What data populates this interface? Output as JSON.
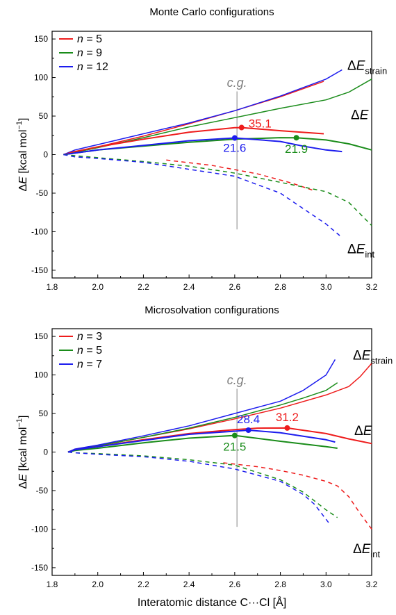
{
  "chart_data": [
    {
      "type": "line",
      "title": "Monte Carlo configurations",
      "ylabel_prefix": "Δ",
      "ylabel_var": "E",
      "ylabel_units": "[kcal mol",
      "ylabel_sup": "−1",
      "ylabel_close": "]",
      "xlim": [
        1.8,
        3.2
      ],
      "ylim": [
        -160,
        160
      ],
      "xticks": [
        "1.8",
        "2.0",
        "2.2",
        "2.4",
        "2.6",
        "2.8",
        "3.0",
        "3.2"
      ],
      "yticks": [
        "-150",
        "-100",
        "-50",
        "0",
        "50",
        "100",
        "150"
      ],
      "legend": [
        {
          "prefix": "n",
          "text": " = 5",
          "color": "#ee1c1c"
        },
        {
          "prefix": "n",
          "text": " = 9",
          "color": "#1a8c1a"
        },
        {
          "prefix": "n",
          "text": " = 12",
          "color": "#1c1cee"
        }
      ],
      "cg": {
        "label": "c.g.",
        "x": 2.61
      },
      "curve_labels": [
        {
          "delta": "Δ",
          "var": "E",
          "sub": "strain"
        },
        {
          "delta": "Δ",
          "var": "E",
          "sub": ""
        },
        {
          "delta": "Δ",
          "var": "E",
          "sub": "int"
        }
      ],
      "annotations": [
        {
          "text": "35.1",
          "x": 2.63,
          "y": 35.1,
          "color": "#ee1c1c"
        },
        {
          "text": "21.6",
          "x": 2.6,
          "y": 21.6,
          "color": "#1c1cee"
        },
        {
          "text": "21.9",
          "x": 2.87,
          "y": 21.9,
          "color": "#1a8c1a"
        }
      ],
      "series": [
        {
          "name": "n = 5",
          "kind": "strain",
          "color": "#ee1c1c",
          "x": [
            1.85,
            1.9,
            2.0,
            2.2,
            2.4,
            2.6,
            2.8,
            2.99
          ],
          "y": [
            0,
            4,
            10,
            24,
            40,
            57,
            75,
            95
          ]
        },
        {
          "name": "n = 9",
          "kind": "strain",
          "color": "#1a8c1a",
          "x": [
            1.85,
            1.9,
            2.0,
            2.2,
            2.4,
            2.6,
            2.8,
            3.0,
            3.1,
            3.2
          ],
          "y": [
            0,
            3,
            9,
            22,
            36,
            48,
            60,
            71,
            81,
            98
          ]
        },
        {
          "name": "n = 12",
          "kind": "strain",
          "color": "#1c1cee",
          "x": [
            1.85,
            1.9,
            2.0,
            2.2,
            2.4,
            2.6,
            2.8,
            3.0,
            3.07
          ],
          "y": [
            0,
            6,
            13,
            27,
            41,
            57,
            76,
            98,
            110
          ]
        },
        {
          "name": "n = 5",
          "kind": "total",
          "color": "#ee1c1c",
          "x": [
            1.85,
            1.9,
            2.0,
            2.2,
            2.4,
            2.6,
            2.63,
            2.8,
            2.99
          ],
          "y": [
            0,
            4,
            10,
            20,
            29,
            35,
            35.1,
            31,
            27
          ]
        },
        {
          "name": "n = 9",
          "kind": "total",
          "color": "#1a8c1a",
          "x": [
            1.85,
            1.9,
            2.0,
            2.2,
            2.4,
            2.6,
            2.8,
            2.87,
            3.0,
            3.1,
            3.2
          ],
          "y": [
            0,
            2,
            6,
            11,
            16,
            20,
            22,
            21.9,
            19,
            14,
            6
          ]
        },
        {
          "name": "n = 12",
          "kind": "total",
          "color": "#1c1cee",
          "x": [
            1.85,
            1.9,
            2.0,
            2.2,
            2.4,
            2.6,
            2.8,
            2.9,
            3.0,
            3.07
          ],
          "y": [
            0,
            2,
            6,
            12,
            18,
            21.6,
            17,
            11,
            6,
            4
          ]
        },
        {
          "name": "n = 5",
          "kind": "int",
          "color": "#ee1c1c",
          "dashed": true,
          "x": [
            2.3,
            2.5,
            2.7,
            2.85,
            2.95
          ],
          "y": [
            -7,
            -14,
            -25,
            -37,
            -47
          ]
        },
        {
          "name": "n = 9",
          "kind": "int",
          "color": "#1a8c1a",
          "dashed": true,
          "x": [
            1.85,
            2.0,
            2.2,
            2.4,
            2.6,
            2.8,
            3.0,
            3.1,
            3.2
          ],
          "y": [
            0,
            -4,
            -9,
            -15,
            -24,
            -36,
            -48,
            -62,
            -92
          ]
        },
        {
          "name": "n = 12",
          "kind": "int",
          "color": "#1c1cee",
          "dashed": true,
          "x": [
            1.85,
            1.9,
            2.0,
            2.2,
            2.4,
            2.6,
            2.8,
            2.9,
            3.0,
            3.06
          ],
          "y": [
            0,
            -3,
            -5,
            -10,
            -19,
            -28,
            -50,
            -70,
            -90,
            -105
          ]
        }
      ]
    },
    {
      "type": "line",
      "title": "Microsolvation configurations",
      "ylabel_prefix": "Δ",
      "ylabel_var": "E",
      "ylabel_units": "[kcal mol",
      "ylabel_sup": "−1",
      "ylabel_close": "]",
      "xlabel": "Interatomic distance C···Cl [Å]",
      "xlim": [
        1.8,
        3.2
      ],
      "ylim": [
        -160,
        160
      ],
      "xticks": [
        "1.8",
        "2.0",
        "2.2",
        "2.4",
        "2.6",
        "2.8",
        "3.0",
        "3.2"
      ],
      "yticks": [
        "-150",
        "-100",
        "-50",
        "0",
        "50",
        "100",
        "150"
      ],
      "legend": [
        {
          "prefix": "n",
          "text": " = 3",
          "color": "#ee1c1c"
        },
        {
          "prefix": "n",
          "text": " = 5",
          "color": "#1a8c1a"
        },
        {
          "prefix": "n",
          "text": " = 7",
          "color": "#1c1cee"
        }
      ],
      "cg": {
        "label": "c.g.",
        "x": 2.61
      },
      "curve_labels": [
        {
          "delta": "Δ",
          "var": "E",
          "sub": "strain"
        },
        {
          "delta": "Δ",
          "var": "E",
          "sub": ""
        },
        {
          "delta": "Δ",
          "var": "E",
          "sub": "int"
        }
      ],
      "annotations": [
        {
          "text": "28.4",
          "x": 2.66,
          "y": 28.4,
          "color": "#1c1cee"
        },
        {
          "text": "31.2",
          "x": 2.83,
          "y": 31.2,
          "color": "#ee1c1c"
        },
        {
          "text": "21.5",
          "x": 2.6,
          "y": 21.5,
          "color": "#1a8c1a"
        }
      ],
      "series": [
        {
          "name": "n = 3",
          "kind": "strain",
          "color": "#ee1c1c",
          "x": [
            1.87,
            1.9,
            2.0,
            2.2,
            2.4,
            2.6,
            2.8,
            3.0,
            3.1,
            3.15,
            3.2
          ],
          "y": [
            0,
            3,
            8,
            19,
            30,
            43,
            57,
            74,
            85,
            98,
            115
          ]
        },
        {
          "name": "n = 5",
          "kind": "strain",
          "color": "#1a8c1a",
          "x": [
            1.87,
            1.9,
            2.0,
            2.2,
            2.4,
            2.6,
            2.8,
            2.9,
            3.0,
            3.05
          ],
          "y": [
            0,
            3,
            8,
            19,
            31,
            45,
            61,
            70,
            80,
            90
          ]
        },
        {
          "name": "n = 7",
          "kind": "strain",
          "color": "#1c1cee",
          "x": [
            1.87,
            1.9,
            2.0,
            2.2,
            2.4,
            2.6,
            2.8,
            2.9,
            3.0,
            3.04
          ],
          "y": [
            0,
            4,
            9,
            21,
            34,
            50,
            66,
            80,
            100,
            120
          ]
        },
        {
          "name": "n = 3",
          "kind": "total",
          "color": "#ee1c1c",
          "x": [
            1.87,
            1.9,
            2.0,
            2.2,
            2.4,
            2.6,
            2.7,
            2.83,
            3.0,
            3.1,
            3.2
          ],
          "y": [
            0,
            3,
            7,
            16,
            24,
            29,
            31,
            31.2,
            24,
            17,
            11
          ]
        },
        {
          "name": "n = 5",
          "kind": "total",
          "color": "#1a8c1a",
          "x": [
            1.87,
            1.9,
            2.0,
            2.2,
            2.4,
            2.6,
            2.8,
            3.0,
            3.05
          ],
          "y": [
            0,
            2,
            5,
            12,
            18,
            21.5,
            14,
            7,
            5
          ]
        },
        {
          "name": "n = 7",
          "kind": "total",
          "color": "#1c1cee",
          "x": [
            1.87,
            1.9,
            2.0,
            2.2,
            2.4,
            2.6,
            2.66,
            2.8,
            3.0,
            3.04
          ],
          "y": [
            0,
            3,
            7,
            15,
            23,
            27,
            28.4,
            25,
            16,
            13
          ]
        },
        {
          "name": "n = 3",
          "kind": "int",
          "color": "#ee1c1c",
          "dashed": true,
          "x": [
            2.55,
            2.7,
            2.8,
            2.9,
            3.0,
            3.05,
            3.1,
            3.15,
            3.2
          ],
          "y": [
            -14,
            -19,
            -24,
            -30,
            -38,
            -44,
            -58,
            -80,
            -100
          ]
        },
        {
          "name": "n = 5",
          "kind": "int",
          "color": "#1a8c1a",
          "dashed": true,
          "x": [
            1.87,
            1.9,
            2.0,
            2.2,
            2.4,
            2.6,
            2.8,
            2.9,
            3.0,
            3.05
          ],
          "y": [
            0,
            -1,
            -2,
            -5,
            -10,
            -17,
            -36,
            -52,
            -75,
            -85
          ]
        },
        {
          "name": "n = 7",
          "kind": "int",
          "color": "#1c1cee",
          "dashed": true,
          "x": [
            1.87,
            1.9,
            2.0,
            2.2,
            2.4,
            2.6,
            2.8,
            2.9,
            2.95,
            3.02
          ],
          "y": [
            0,
            -1,
            -3,
            -6,
            -12,
            -22,
            -38,
            -55,
            -68,
            -95
          ]
        }
      ]
    }
  ]
}
